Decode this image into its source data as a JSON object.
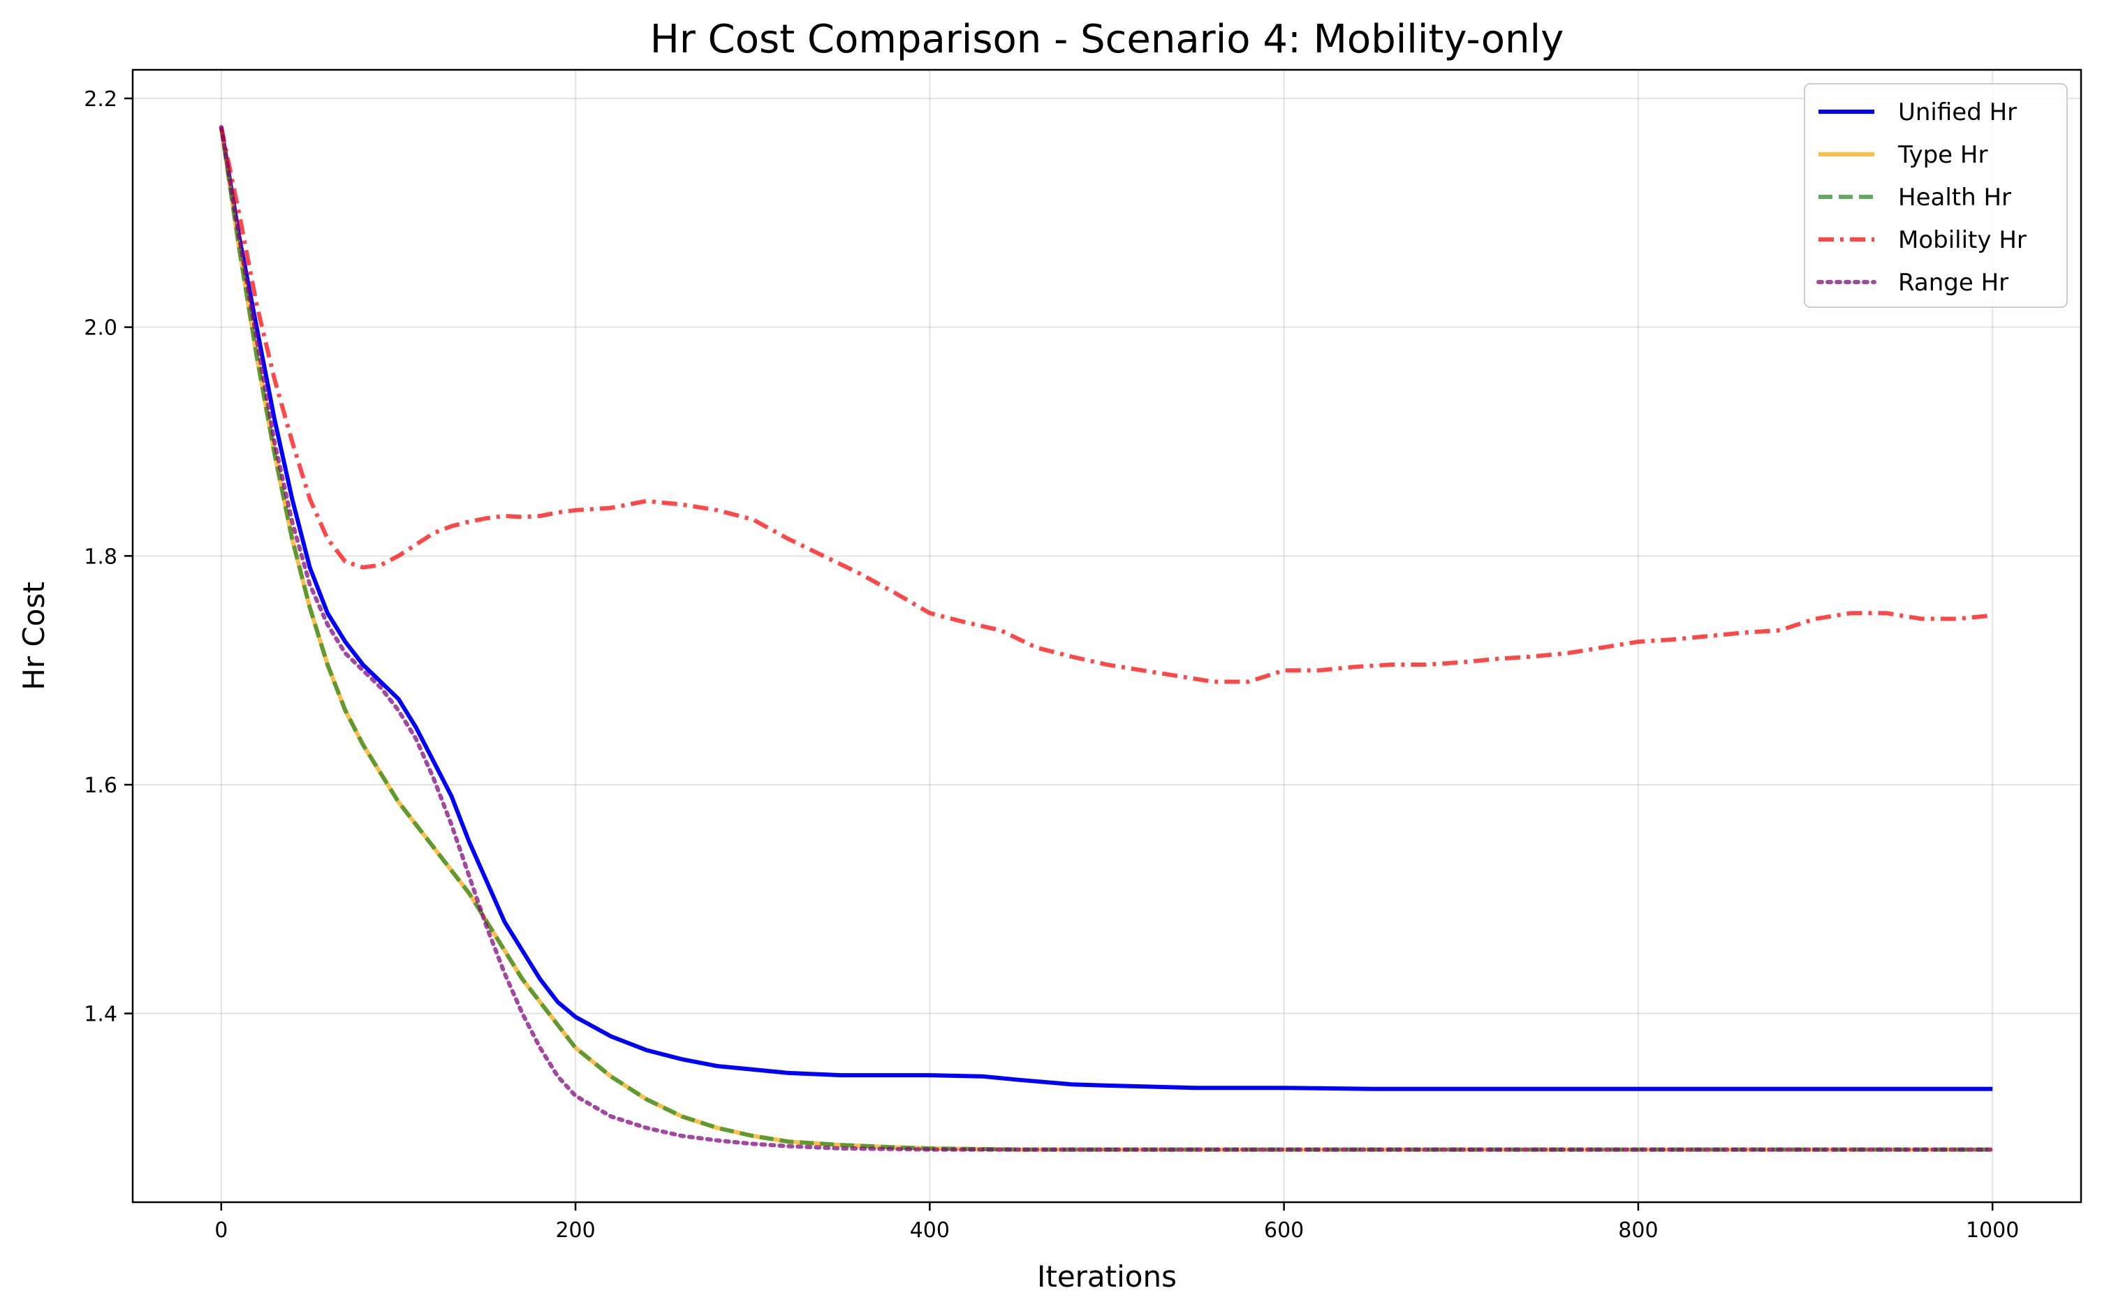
{
  "chart_data": {
    "type": "line",
    "title": "Hr Cost Comparison - Scenario 4: Mobility-only",
    "xlabel": "Iterations",
    "ylabel": "Hr Cost",
    "xlim": [
      -50,
      1050
    ],
    "ylim": [
      1.235,
      2.225
    ],
    "xticks": [
      0,
      200,
      400,
      600,
      800,
      1000
    ],
    "xtick_labels": [
      "0",
      "200",
      "400",
      "600",
      "800",
      "1000"
    ],
    "yticks": [
      1.4,
      1.6,
      1.8,
      2.0,
      2.2
    ],
    "ytick_labels": [
      "1.4",
      "1.6",
      "1.8",
      "2.0",
      "2.2"
    ],
    "grid": true,
    "legend_position": "top-right",
    "series": [
      {
        "name": "Unified Hr",
        "color": "#0000ff",
        "dash": "solid",
        "points": [
          [
            0,
            2.175
          ],
          [
            10,
            2.08
          ],
          [
            20,
            2.0
          ],
          [
            30,
            1.92
          ],
          [
            40,
            1.85
          ],
          [
            50,
            1.79
          ],
          [
            60,
            1.75
          ],
          [
            70,
            1.725
          ],
          [
            80,
            1.705
          ],
          [
            90,
            1.69
          ],
          [
            100,
            1.675
          ],
          [
            110,
            1.65
          ],
          [
            120,
            1.62
          ],
          [
            130,
            1.59
          ],
          [
            140,
            1.55
          ],
          [
            150,
            1.515
          ],
          [
            160,
            1.48
          ],
          [
            170,
            1.455
          ],
          [
            180,
            1.43
          ],
          [
            190,
            1.41
          ],
          [
            200,
            1.397
          ],
          [
            220,
            1.38
          ],
          [
            240,
            1.368
          ],
          [
            260,
            1.36
          ],
          [
            280,
            1.354
          ],
          [
            300,
            1.351
          ],
          [
            320,
            1.348
          ],
          [
            350,
            1.346
          ],
          [
            400,
            1.346
          ],
          [
            430,
            1.345
          ],
          [
            450,
            1.342
          ],
          [
            480,
            1.338
          ],
          [
            500,
            1.337
          ],
          [
            550,
            1.335
          ],
          [
            600,
            1.335
          ],
          [
            650,
            1.334
          ],
          [
            700,
            1.334
          ],
          [
            800,
            1.334
          ],
          [
            900,
            1.334
          ],
          [
            1000,
            1.334
          ]
        ]
      },
      {
        "name": "Type Hr",
        "color": "#ffa500",
        "dash": "solid",
        "points": [
          [
            0,
            2.175
          ],
          [
            10,
            2.07
          ],
          [
            20,
            1.975
          ],
          [
            30,
            1.89
          ],
          [
            40,
            1.815
          ],
          [
            50,
            1.755
          ],
          [
            60,
            1.705
          ],
          [
            70,
            1.665
          ],
          [
            80,
            1.635
          ],
          [
            90,
            1.61
          ],
          [
            100,
            1.585
          ],
          [
            110,
            1.565
          ],
          [
            120,
            1.545
          ],
          [
            130,
            1.525
          ],
          [
            140,
            1.505
          ],
          [
            150,
            1.48
          ],
          [
            160,
            1.455
          ],
          [
            170,
            1.43
          ],
          [
            180,
            1.41
          ],
          [
            190,
            1.39
          ],
          [
            200,
            1.37
          ],
          [
            220,
            1.345
          ],
          [
            240,
            1.325
          ],
          [
            260,
            1.31
          ],
          [
            280,
            1.3
          ],
          [
            300,
            1.293
          ],
          [
            320,
            1.288
          ],
          [
            350,
            1.285
          ],
          [
            380,
            1.283
          ],
          [
            400,
            1.282
          ],
          [
            450,
            1.281
          ],
          [
            500,
            1.281
          ],
          [
            600,
            1.281
          ],
          [
            700,
            1.281
          ],
          [
            800,
            1.281
          ],
          [
            900,
            1.281
          ],
          [
            1000,
            1.281
          ]
        ]
      },
      {
        "name": "Health Hr",
        "color": "#228b22",
        "dash": "dashed",
        "points": [
          [
            0,
            2.175
          ],
          [
            10,
            2.07
          ],
          [
            20,
            1.975
          ],
          [
            30,
            1.89
          ],
          [
            40,
            1.815
          ],
          [
            50,
            1.755
          ],
          [
            60,
            1.705
          ],
          [
            70,
            1.665
          ],
          [
            80,
            1.635
          ],
          [
            90,
            1.61
          ],
          [
            100,
            1.585
          ],
          [
            110,
            1.565
          ],
          [
            120,
            1.545
          ],
          [
            130,
            1.525
          ],
          [
            140,
            1.505
          ],
          [
            150,
            1.48
          ],
          [
            160,
            1.455
          ],
          [
            170,
            1.43
          ],
          [
            180,
            1.41
          ],
          [
            190,
            1.39
          ],
          [
            200,
            1.37
          ],
          [
            220,
            1.345
          ],
          [
            240,
            1.325
          ],
          [
            260,
            1.31
          ],
          [
            280,
            1.3
          ],
          [
            300,
            1.293
          ],
          [
            320,
            1.288
          ],
          [
            350,
            1.285
          ],
          [
            380,
            1.283
          ],
          [
            400,
            1.282
          ],
          [
            450,
            1.281
          ],
          [
            500,
            1.281
          ],
          [
            600,
            1.281
          ],
          [
            700,
            1.281
          ],
          [
            800,
            1.281
          ],
          [
            900,
            1.281
          ],
          [
            1000,
            1.281
          ]
        ]
      },
      {
        "name": "Mobility Hr",
        "color": "#ff0000",
        "dash": "dashdot",
        "points": [
          [
            0,
            2.175
          ],
          [
            10,
            2.1
          ],
          [
            20,
            2.02
          ],
          [
            30,
            1.955
          ],
          [
            40,
            1.9
          ],
          [
            50,
            1.85
          ],
          [
            60,
            1.815
          ],
          [
            70,
            1.795
          ],
          [
            80,
            1.79
          ],
          [
            90,
            1.792
          ],
          [
            100,
            1.8
          ],
          [
            110,
            1.81
          ],
          [
            120,
            1.82
          ],
          [
            130,
            1.826
          ],
          [
            140,
            1.83
          ],
          [
            150,
            1.833
          ],
          [
            160,
            1.835
          ],
          [
            170,
            1.834
          ],
          [
            180,
            1.835
          ],
          [
            190,
            1.838
          ],
          [
            200,
            1.84
          ],
          [
            220,
            1.842
          ],
          [
            240,
            1.848
          ],
          [
            260,
            1.845
          ],
          [
            280,
            1.84
          ],
          [
            300,
            1.832
          ],
          [
            320,
            1.815
          ],
          [
            340,
            1.8
          ],
          [
            360,
            1.785
          ],
          [
            380,
            1.768
          ],
          [
            400,
            1.75
          ],
          [
            420,
            1.742
          ],
          [
            440,
            1.735
          ],
          [
            460,
            1.72
          ],
          [
            480,
            1.712
          ],
          [
            500,
            1.705
          ],
          [
            520,
            1.7
          ],
          [
            540,
            1.695
          ],
          [
            560,
            1.69
          ],
          [
            580,
            1.69
          ],
          [
            600,
            1.7
          ],
          [
            620,
            1.7
          ],
          [
            640,
            1.703
          ],
          [
            660,
            1.705
          ],
          [
            680,
            1.705
          ],
          [
            700,
            1.707
          ],
          [
            720,
            1.71
          ],
          [
            740,
            1.712
          ],
          [
            760,
            1.715
          ],
          [
            780,
            1.72
          ],
          [
            800,
            1.725
          ],
          [
            820,
            1.727
          ],
          [
            840,
            1.73
          ],
          [
            860,
            1.733
          ],
          [
            880,
            1.735
          ],
          [
            900,
            1.745
          ],
          [
            920,
            1.75
          ],
          [
            940,
            1.75
          ],
          [
            960,
            1.745
          ],
          [
            980,
            1.745
          ],
          [
            1000,
            1.748
          ]
        ]
      },
      {
        "name": "Range Hr",
        "color": "#800080",
        "dash": "dotted",
        "points": [
          [
            0,
            2.175
          ],
          [
            10,
            2.08
          ],
          [
            20,
            1.99
          ],
          [
            30,
            1.9
          ],
          [
            40,
            1.83
          ],
          [
            50,
            1.775
          ],
          [
            60,
            1.74
          ],
          [
            70,
            1.715
          ],
          [
            80,
            1.7
          ],
          [
            90,
            1.685
          ],
          [
            100,
            1.665
          ],
          [
            110,
            1.64
          ],
          [
            120,
            1.605
          ],
          [
            130,
            1.565
          ],
          [
            140,
            1.52
          ],
          [
            150,
            1.475
          ],
          [
            160,
            1.435
          ],
          [
            170,
            1.4
          ],
          [
            180,
            1.37
          ],
          [
            190,
            1.345
          ],
          [
            200,
            1.328
          ],
          [
            220,
            1.31
          ],
          [
            240,
            1.3
          ],
          [
            260,
            1.293
          ],
          [
            280,
            1.289
          ],
          [
            300,
            1.286
          ],
          [
            320,
            1.284
          ],
          [
            350,
            1.282
          ],
          [
            400,
            1.281
          ],
          [
            500,
            1.281
          ],
          [
            600,
            1.281
          ],
          [
            700,
            1.281
          ],
          [
            800,
            1.281
          ],
          [
            900,
            1.281
          ],
          [
            1000,
            1.281
          ]
        ]
      }
    ]
  }
}
